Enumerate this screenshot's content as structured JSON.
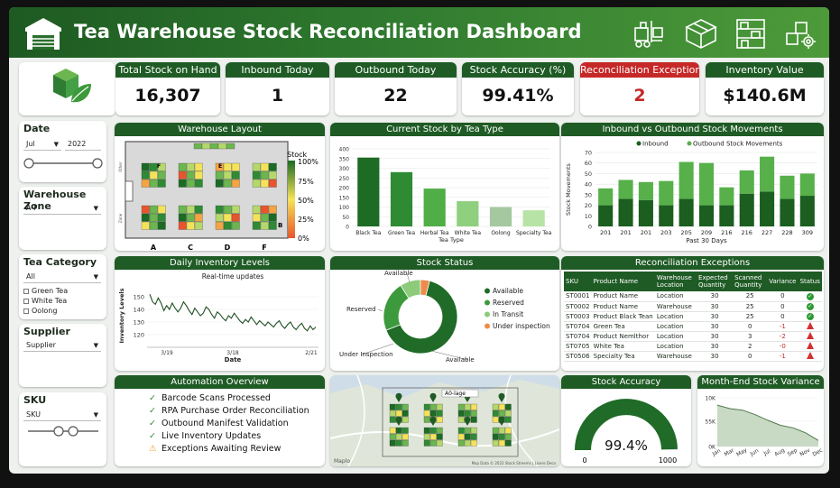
{
  "header": {
    "title": "Tea Warehouse Stock Reconciliation Dashboard"
  },
  "kpis": [
    {
      "title": "Total Stock on Hand",
      "value": "16,307"
    },
    {
      "title": "Inbound Today",
      "value": "1"
    },
    {
      "title": "Outbound Today",
      "value": "22"
    },
    {
      "title": "Stock Accuracy (%)",
      "value": "99.41%"
    },
    {
      "title": "Reconciliation Exceptions",
      "value": "2"
    },
    {
      "title": "Inventory Value",
      "value": "$140.6M"
    }
  ],
  "filters": {
    "date": {
      "label": "Date",
      "month": "Jul",
      "year": "2022"
    },
    "zone": {
      "label": "Warehouse Zone",
      "value": "A-F"
    },
    "category": {
      "label": "Tea Category",
      "value": "All",
      "options": [
        "Green Tea",
        "White Tea",
        "Oolong"
      ]
    },
    "supplier": {
      "label": "Supplier",
      "value": "Supplier"
    },
    "sku": {
      "label": "SKU",
      "value": "SKU"
    }
  },
  "layout_panel": {
    "title": "Warehouse Layout",
    "legend_title": "Stock",
    "legend_ticks": [
      "100%",
      "75%",
      "50%",
      "25%",
      "0%"
    ],
    "zones": [
      "A",
      "C",
      "D",
      "F"
    ],
    "row_labels": [
      "F",
      "E"
    ],
    "side_labels": [
      "Other",
      "Zone"
    ],
    "b_label": "B"
  },
  "stock_by_type": {
    "title": "Current Stock by Tea Type",
    "chart_data": {
      "type": "bar",
      "categories": [
        "Black Tea",
        "Green Tea",
        "Herbal Tea",
        "White Tea",
        "Oolong",
        "Specialty Tea"
      ],
      "values": [
        355,
        280,
        195,
        130,
        100,
        83
      ],
      "xlabel": "Tea Type",
      "ylim": [
        0,
        400
      ],
      "yticks": [
        0,
        50,
        100,
        150,
        200,
        250,
        300,
        350,
        400
      ],
      "colors": [
        "#1e6b26",
        "#2e8b34",
        "#4fae45",
        "#8fd07e",
        "#a5c8a0",
        "#b7e3a6"
      ]
    }
  },
  "movements": {
    "title": "Inbound vs Outbound Stock Movements",
    "chart_data": {
      "type": "bar",
      "legend": [
        "Inbound",
        "Outbound Stock Movements"
      ],
      "categories": [
        "201",
        "201",
        "201",
        "203",
        "205",
        "209",
        "216",
        "216",
        "227",
        "228",
        "309"
      ],
      "series": [
        {
          "name": "Inbound",
          "values": [
            20,
            26,
            25,
            20,
            26,
            20,
            20,
            31,
            33,
            26,
            29
          ],
          "color": "#1b5e20"
        },
        {
          "name": "Outbound Stock Movements",
          "values": [
            16,
            18,
            17,
            23,
            35,
            40,
            17,
            22,
            33,
            22,
            21
          ],
          "color": "#57b04a"
        }
      ],
      "ylabel": "Stock Movements",
      "xlabel": "Past 30 Days",
      "ylim": [
        0,
        70
      ],
      "yticks": [
        0,
        10,
        20,
        30,
        40,
        50,
        60,
        70
      ]
    }
  },
  "daily": {
    "title": "Daily Inventory Levels",
    "chart_data": {
      "type": "line",
      "subtitle": "Real-time updates",
      "ylabel": "Inventory Levels",
      "xlabel": "Date",
      "ylim": [
        110,
        160
      ],
      "yticks": [
        120,
        130,
        140,
        150
      ],
      "xtick_labels": [
        "3/19",
        "3/18",
        "2/21"
      ],
      "values": [
        152,
        146,
        144,
        149,
        145,
        139,
        143,
        140,
        145,
        141,
        138,
        141,
        146,
        143,
        139,
        136,
        141,
        138,
        135,
        137,
        142,
        140,
        136,
        133,
        138,
        136,
        133,
        131,
        135,
        133,
        137,
        134,
        131,
        129,
        132,
        130,
        134,
        131,
        128,
        131,
        129,
        127,
        130,
        128,
        126,
        129,
        131,
        127,
        125,
        128,
        130,
        126,
        124,
        127,
        129,
        125,
        123,
        127,
        124,
        126
      ]
    }
  },
  "stock_status": {
    "title": "Stock Status",
    "chart_data": {
      "type": "pie",
      "categories": [
        "Available",
        "Reserved",
        "In Transit",
        "Under inspection"
      ],
      "values": [
        65,
        22,
        9,
        4
      ],
      "colors": [
        "#1f6b27",
        "#3d9a3c",
        "#8bcb7a",
        "#ef8b4a"
      ],
      "callouts": [
        "Available",
        "Reserved",
        "Under Inspection",
        "Available"
      ]
    }
  },
  "reconciliation": {
    "title": "Reconciliation Exceptions",
    "columns": [
      "SKU",
      "Product Name",
      "Warehouse Location",
      "Expected Quantity",
      "Scanned Quantity",
      "Variance",
      "Status"
    ],
    "rows": [
      {
        "sku": "ST0001",
        "name": "Product Name",
        "loc": "Location",
        "exp": "30",
        "scan": "25",
        "var": "0",
        "status": "ok"
      },
      {
        "sku": "ST0002",
        "name": "Product Name",
        "loc": "Warehouse",
        "exp": "30",
        "scan": "25",
        "var": "0",
        "status": "ok"
      },
      {
        "sku": "ST0003",
        "name": "Product Black Tean",
        "loc": "Location",
        "exp": "30",
        "scan": "25",
        "var": "0",
        "status": "ok"
      },
      {
        "sku": "ST0704",
        "name": "Green Tea",
        "loc": "Location",
        "exp": "30",
        "scan": "0",
        "var": "-1",
        "status": "warn"
      },
      {
        "sku": "ST0704",
        "name": "Product Nemlthor",
        "loc": "Location",
        "exp": "30",
        "scan": "3",
        "var": "-2",
        "status": "warn"
      },
      {
        "sku": "ST0705",
        "name": "White Tea",
        "loc": "Location",
        "exp": "30",
        "scan": "2",
        "var": "-0",
        "status": "warn"
      },
      {
        "sku": "ST0506",
        "name": "Specialty Tea",
        "loc": "Warehouse",
        "exp": "30",
        "scan": "0",
        "var": "-1",
        "status": "warn"
      }
    ]
  },
  "automation": {
    "title": "Automation Overview",
    "items": [
      {
        "label": "Barcode Scans Processed",
        "kind": "check"
      },
      {
        "label": "RPA Purchase Order Reconciliation",
        "kind": "check"
      },
      {
        "label": "Outbound Manifest Validation",
        "kind": "check"
      },
      {
        "label": "Live Inventory Updates",
        "kind": "check"
      },
      {
        "label": "Exceptions Awaiting Review",
        "kind": "warn"
      }
    ]
  },
  "map": {
    "tag": "A0-lage",
    "logo": "Maplo",
    "attribution": "Map Data © 2022 Stock Streems | Lisere Deco"
  },
  "accuracy_gauge": {
    "title": "Stock Accuracy",
    "value_label": "99.4%",
    "min": "0",
    "max": "1000",
    "value": 0.994
  },
  "month_end": {
    "title": "Month-End Stock Variance",
    "chart_data": {
      "type": "area",
      "categories": [
        "Jan",
        "Mar",
        "May",
        "Jun",
        "Jul",
        "Aug",
        "Sep",
        "Nov",
        "Dec"
      ],
      "values": [
        82,
        75,
        72,
        63,
        52,
        42,
        37,
        27,
        12
      ],
      "yticks_labels": [
        "10K",
        "55K",
        "0K"
      ],
      "ylim": [
        0,
        100
      ]
    }
  },
  "colors": {
    "brand": "#1f5b25",
    "accent": "#2e8b34",
    "alert": "#c62828"
  }
}
